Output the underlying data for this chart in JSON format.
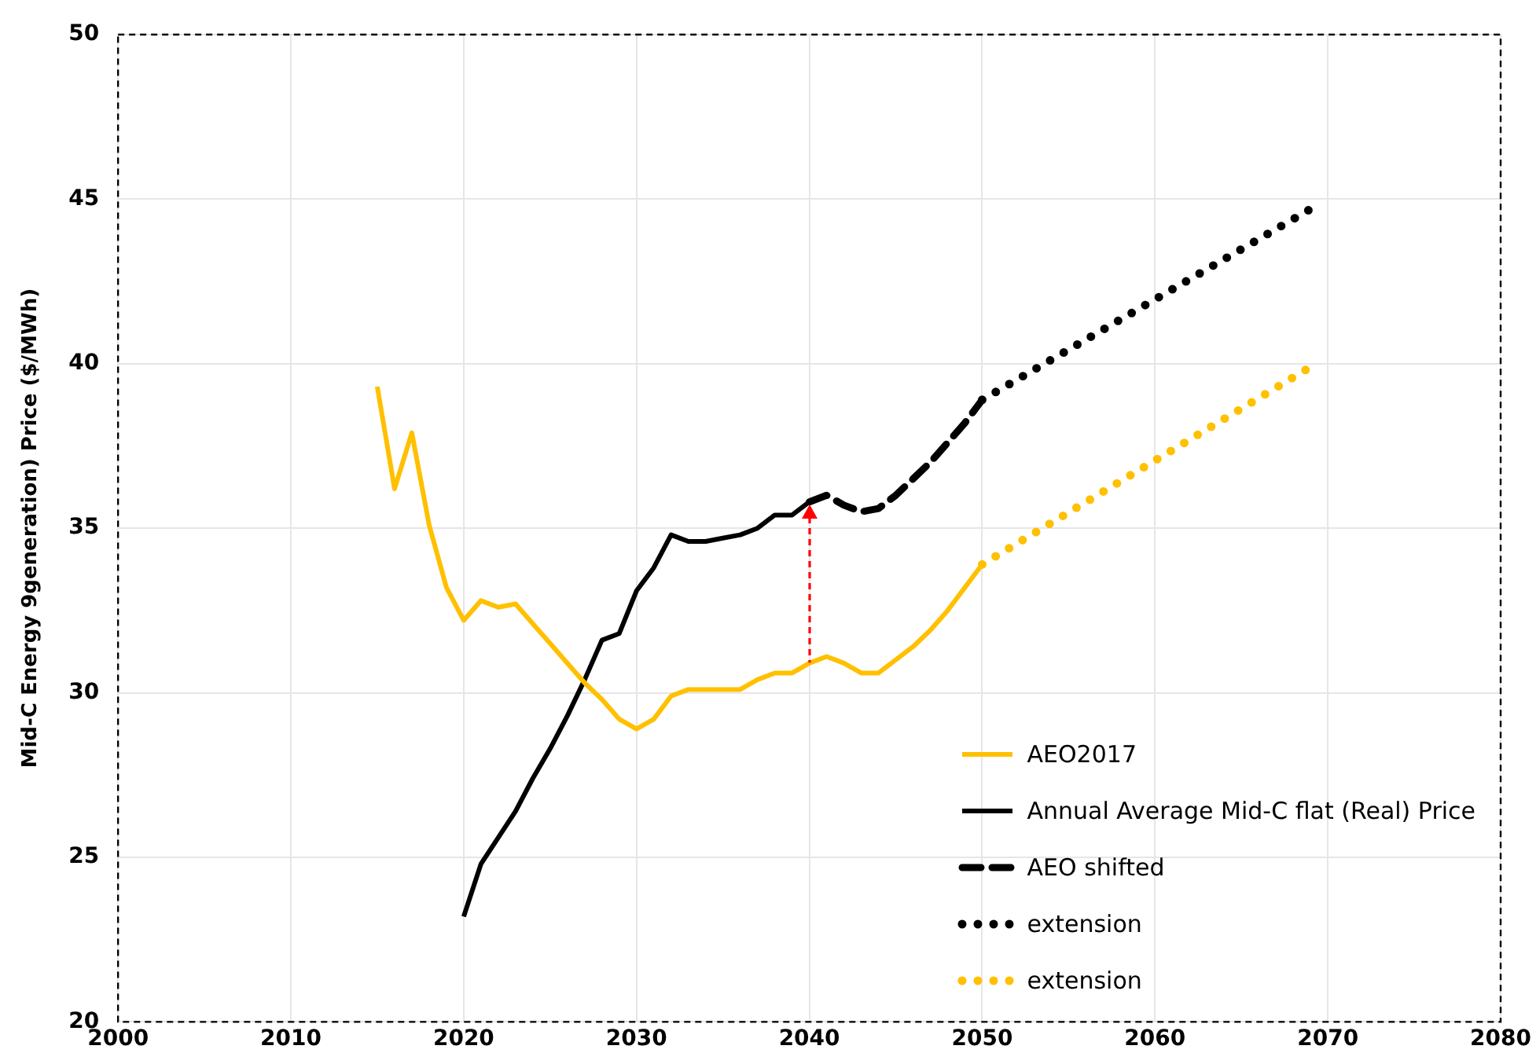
{
  "chart_data": {
    "type": "line",
    "ylabel": "Mid-C Energy 9generation) Price ($/MWh)",
    "xlim": [
      2000,
      2080
    ],
    "xticks": [
      2000,
      2010,
      2020,
      2030,
      2040,
      2050,
      2060,
      2070,
      2080
    ],
    "ylim": [
      20,
      50
    ],
    "yticks": [
      20,
      25,
      30,
      35,
      40,
      45,
      50
    ],
    "grid": true,
    "legend": "bottom right",
    "marker": "none",
    "series": [
      {
        "name": "AEO2017",
        "color": "#ffc000",
        "line_style": "solid",
        "x": [
          2015,
          2016,
          2017,
          2018,
          2019,
          2020,
          2021,
          2022,
          2023,
          2024,
          2025,
          2026,
          2027,
          2028,
          2029,
          2030,
          2031,
          2032,
          2033,
          2034,
          2035,
          2036,
          2037,
          2038,
          2039,
          2040,
          2041,
          2042,
          2043,
          2044,
          2045,
          2046,
          2047,
          2048,
          2049,
          2050
        ],
        "values": [
          39.3,
          36.2,
          37.9,
          35.1,
          33.2,
          32.2,
          32.8,
          32.6,
          32.7,
          32.1,
          31.5,
          30.9,
          30.3,
          29.8,
          29.2,
          28.9,
          29.2,
          29.9,
          30.1,
          30.1,
          30.1,
          30.1,
          30.4,
          30.6,
          30.6,
          30.9,
          31.1,
          30.9,
          30.6,
          30.6,
          31.0,
          31.4,
          31.9,
          32.5,
          33.2,
          33.9
        ]
      },
      {
        "name": "Annual Average Mid-C flat (Real) Price",
        "color": "#000000",
        "line_style": "solid",
        "x": [
          2020,
          2021,
          2022,
          2023,
          2024,
          2025,
          2026,
          2027,
          2028,
          2029,
          2030,
          2031,
          2032,
          2033,
          2034,
          2035,
          2036,
          2037,
          2038,
          2039,
          2040
        ],
        "values": [
          23.2,
          24.8,
          25.6,
          26.4,
          27.4,
          28.3,
          29.3,
          30.4,
          31.6,
          31.8,
          33.1,
          33.8,
          34.8,
          34.6,
          34.6,
          34.7,
          34.8,
          35.0,
          35.4,
          35.4,
          35.8
        ]
      },
      {
        "name": "AEO shifted",
        "color": "#000000",
        "line_style": "dashed",
        "x": [
          2040,
          2041,
          2042,
          2043,
          2044,
          2045,
          2046,
          2047,
          2048,
          2049,
          2050
        ],
        "values": [
          35.8,
          36.0,
          35.7,
          35.5,
          35.6,
          36.0,
          36.5,
          37.0,
          37.6,
          38.2,
          38.9
        ]
      },
      {
        "name": "extension",
        "color": "#000000",
        "line_style": "dotted",
        "x": [
          2050,
          2069
        ],
        "values": [
          38.9,
          44.7
        ]
      },
      {
        "name": "extension",
        "color": "#ffc000",
        "line_style": "dotted",
        "x": [
          2050,
          2069
        ],
        "values": [
          33.9,
          39.9
        ]
      }
    ]
  }
}
